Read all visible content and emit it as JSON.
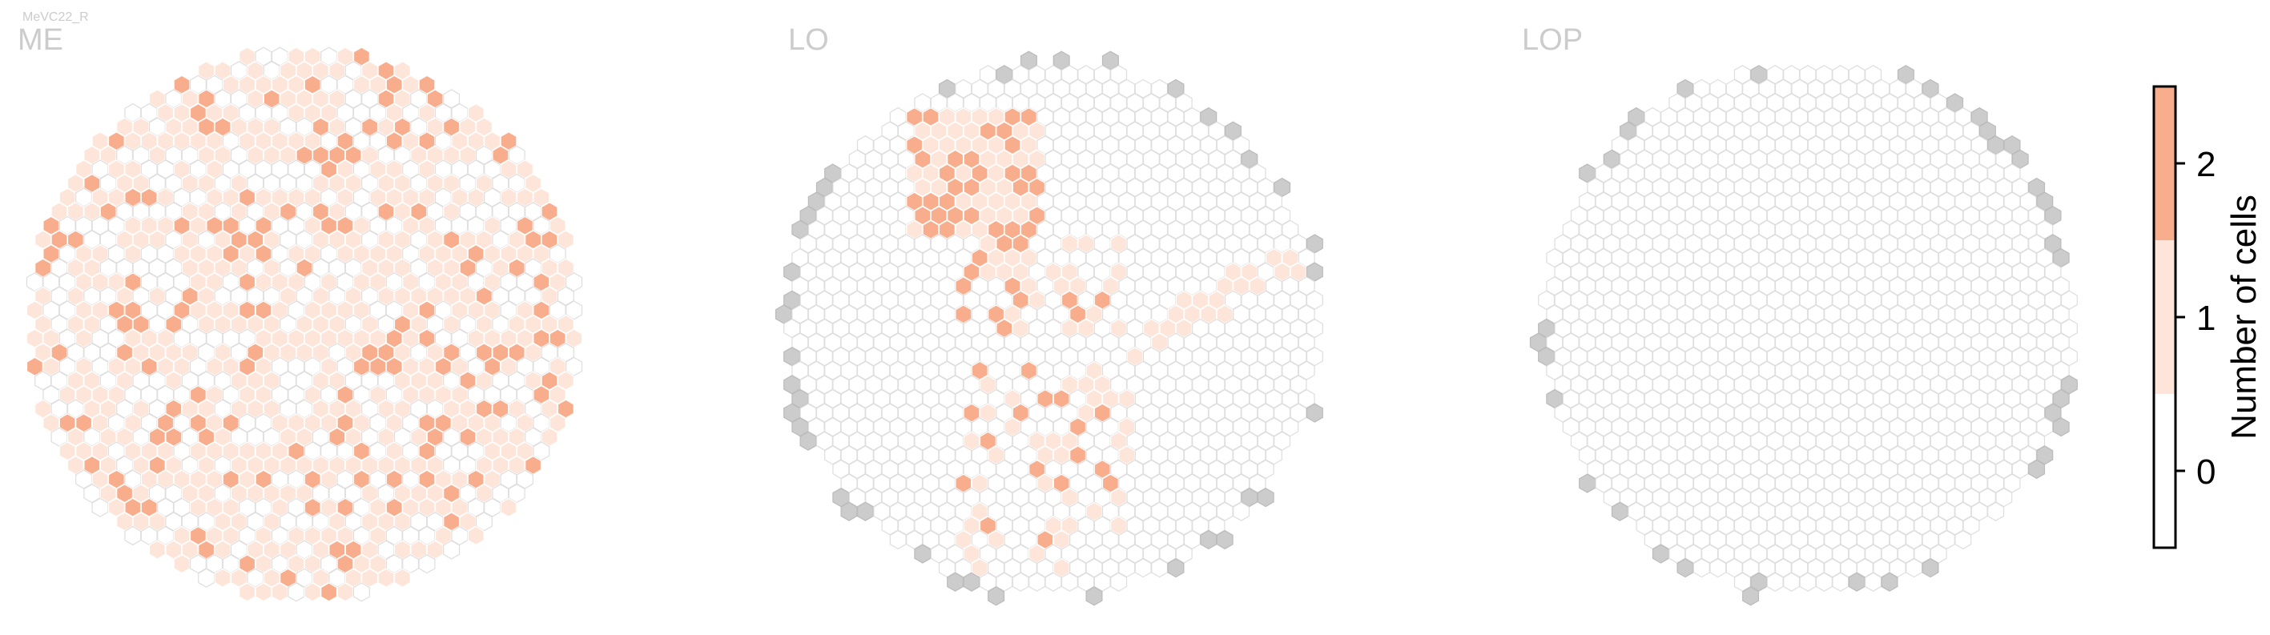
{
  "figure": {
    "cell_type": "MeVC22_R"
  },
  "chart_data": [
    {
      "type": "heatmap",
      "title": "ME",
      "grid": "hexagonal",
      "rows": 36,
      "cols": 35,
      "value_density": {
        "0": 0.35,
        "1": 0.5,
        "2": 0.15
      },
      "colorbar_ticks": [
        0,
        1,
        2
      ]
    },
    {
      "type": "heatmap",
      "title": "LO",
      "grid": "hexagonal",
      "rows": 36,
      "cols": 35,
      "hotspots": [
        {
          "region": "upper-left cluster",
          "value": 2
        },
        {
          "region": "central diagonal band",
          "value": 1
        },
        {
          "region": "lower-center column",
          "value": 2
        }
      ],
      "colorbar_ticks": [
        0,
        1,
        2
      ]
    },
    {
      "type": "heatmap",
      "title": "LOP",
      "grid": "hexagonal",
      "rows": 36,
      "cols": 35,
      "value_density": {
        "0": 1.0
      },
      "colorbar_ticks": [
        0,
        1,
        2
      ]
    }
  ],
  "colorbar": {
    "label": "Number of cells",
    "ticks": [
      "0",
      "1",
      "2"
    ],
    "levels": [
      {
        "value": 0,
        "color": "#ffffff"
      },
      {
        "value": 1,
        "color": "#fde5da"
      },
      {
        "value": 2,
        "color": "#f8ad8d"
      }
    ],
    "range": [
      -0.5,
      2.5
    ]
  },
  "colors": {
    "zero_edge": "#dedede",
    "outside_fill": "#cccccc",
    "value1": "#fde5da",
    "value2": "#f8ad8d",
    "title": "#cccccc"
  }
}
